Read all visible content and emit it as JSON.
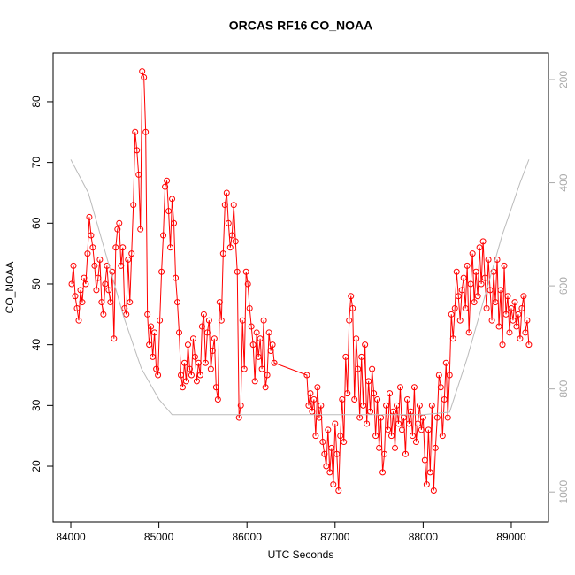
{
  "chart_data": {
    "type": "line",
    "title": "ORCAS RF16 CO_NOAA",
    "x_label": "UTC Seconds",
    "y_label": "CO_NOAA",
    "xlim": [
      83799,
      89422
    ],
    "ylim": [
      10.83,
      88.0
    ],
    "y2lim": [
      1058,
      148.5
    ],
    "xticks": [
      84000,
      85000,
      86000,
      87000,
      88000,
      89000
    ],
    "yticks": [
      20,
      30,
      40,
      50,
      60,
      70,
      80
    ],
    "y2ticks": [
      200,
      400,
      600,
      800,
      1000
    ],
    "y2_tick_color": "#aaaaaa",
    "series": [
      {
        "color": "#ff0000",
        "marker": "open-circle",
        "x": [
          84010,
          84030,
          84050,
          84070,
          84090,
          84110,
          84130,
          84150,
          84170,
          84190,
          84210,
          84230,
          84250,
          84270,
          84290,
          84310,
          84330,
          84350,
          84370,
          84390,
          84410,
          84430,
          84450,
          84470,
          84490,
          84510,
          84530,
          84550,
          84570,
          84590,
          84610,
          84630,
          84650,
          84670,
          84690,
          84710,
          84730,
          84750,
          84770,
          84790,
          84810,
          84830,
          84850,
          84870,
          84890,
          84910,
          84930,
          84950,
          84970,
          84990,
          85010,
          85030,
          85050,
          85070,
          85090,
          85110,
          85130,
          85150,
          85170,
          85190,
          85210,
          85230,
          85250,
          85270,
          85290,
          85310,
          85330,
          85350,
          85370,
          85390,
          85410,
          85430,
          85450,
          85470,
          85490,
          85510,
          85530,
          85550,
          85570,
          85590,
          85610,
          85630,
          85650,
          85670,
          85690,
          85710,
          85730,
          85750,
          85770,
          85790,
          85810,
          85830,
          85850,
          85870,
          85890,
          85910,
          85930,
          85950,
          85970,
          85990,
          86010,
          86030,
          86050,
          86070,
          86090,
          86110,
          86130,
          86150,
          86170,
          86190,
          86210,
          86230,
          86250,
          86270,
          86290,
          86310,
          86680,
          86700,
          86720,
          86740,
          86760,
          86780,
          86800,
          86820,
          86840,
          86860,
          86880,
          86900,
          86920,
          86940,
          86960,
          86980,
          87000,
          87020,
          87040,
          87060,
          87080,
          87100,
          87120,
          87140,
          87160,
          87180,
          87200,
          87220,
          87240,
          87260,
          87280,
          87300,
          87320,
          87340,
          87360,
          87380,
          87400,
          87420,
          87440,
          87460,
          87480,
          87500,
          87520,
          87540,
          87560,
          87580,
          87600,
          87620,
          87640,
          87660,
          87680,
          87700,
          87720,
          87740,
          87760,
          87780,
          87800,
          87820,
          87840,
          87860,
          87880,
          87900,
          87920,
          87940,
          87960,
          87980,
          88000,
          88020,
          88040,
          88060,
          88080,
          88100,
          88120,
          88140,
          88160,
          88180,
          88200,
          88220,
          88240,
          88260,
          88280,
          88300,
          88320,
          88340,
          88360,
          88380,
          88400,
          88420,
          88440,
          88460,
          88480,
          88500,
          88520,
          88540,
          88560,
          88580,
          88600,
          88620,
          88640,
          88660,
          88680,
          88700,
          88720,
          88740,
          88760,
          88780,
          88800,
          88820,
          88840,
          88860,
          88880,
          88900,
          88920,
          88940,
          88960,
          88980,
          89000,
          89020,
          89040,
          89060,
          89080,
          89100,
          89120,
          89140,
          89160,
          89180,
          89200
        ],
        "values": [
          50,
          53,
          48,
          46,
          44,
          49,
          47,
          51,
          50,
          55,
          61,
          58,
          56,
          53,
          49,
          51,
          54,
          47,
          45,
          50,
          53,
          49,
          47,
          52,
          41,
          56,
          59,
          60,
          53,
          56,
          46,
          45,
          54,
          47,
          55,
          63,
          75,
          72,
          68,
          59,
          85,
          84,
          75,
          45,
          40,
          43,
          38,
          42,
          36,
          35,
          44,
          52,
          58,
          66,
          67,
          62,
          56,
          64,
          60,
          51,
          47,
          42,
          35,
          33,
          37,
          34,
          40,
          36,
          35,
          41,
          38,
          34,
          37,
          35,
          43,
          45,
          37,
          42,
          44,
          36,
          39,
          41,
          33,
          31,
          47,
          44,
          55,
          63,
          65,
          60,
          56,
          58,
          63,
          57,
          52,
          28,
          30,
          44,
          36,
          52,
          50,
          46,
          43,
          40,
          34,
          42,
          38,
          41,
          36,
          44,
          33,
          35,
          42,
          39,
          40,
          37,
          35,
          30,
          32,
          29,
          31,
          25,
          33,
          28,
          30,
          24,
          22,
          20,
          26,
          19,
          23,
          17,
          27,
          22,
          16,
          25,
          31,
          24,
          38,
          32,
          44,
          48,
          46,
          31,
          41,
          36,
          28,
          38,
          30,
          40,
          27,
          34,
          29,
          36,
          32,
          25,
          31,
          23,
          28,
          19,
          22,
          30,
          26,
          32,
          25,
          29,
          23,
          30,
          27,
          33,
          26,
          28,
          22,
          31,
          27,
          29,
          25,
          33,
          24,
          27,
          30,
          26,
          28,
          21,
          17,
          26,
          19,
          30,
          16,
          23,
          28,
          35,
          33,
          25,
          31,
          37,
          28,
          35,
          45,
          41,
          46,
          52,
          48,
          44,
          49,
          51,
          46,
          53,
          42,
          50,
          55,
          47,
          52,
          48,
          56,
          50,
          57,
          51,
          46,
          54,
          49,
          44,
          52,
          47,
          54,
          43,
          49,
          40,
          53,
          45,
          48,
          42,
          46,
          44,
          47,
          43,
          45,
          41,
          46,
          48,
          42,
          44,
          40
        ]
      },
      {
        "color": "#bbbbbb",
        "axis": "y2",
        "x": [
          84000,
          84200,
          84400,
          84600,
          84800,
          85000,
          85150,
          86000,
          87000,
          88000,
          88300,
          88500,
          88700,
          88900,
          89100,
          89200
        ],
        "values": [
          355,
          420,
          540,
          660,
          760,
          820,
          850,
          850,
          850,
          850,
          845,
          740,
          620,
          500,
          400,
          355
        ]
      }
    ]
  }
}
